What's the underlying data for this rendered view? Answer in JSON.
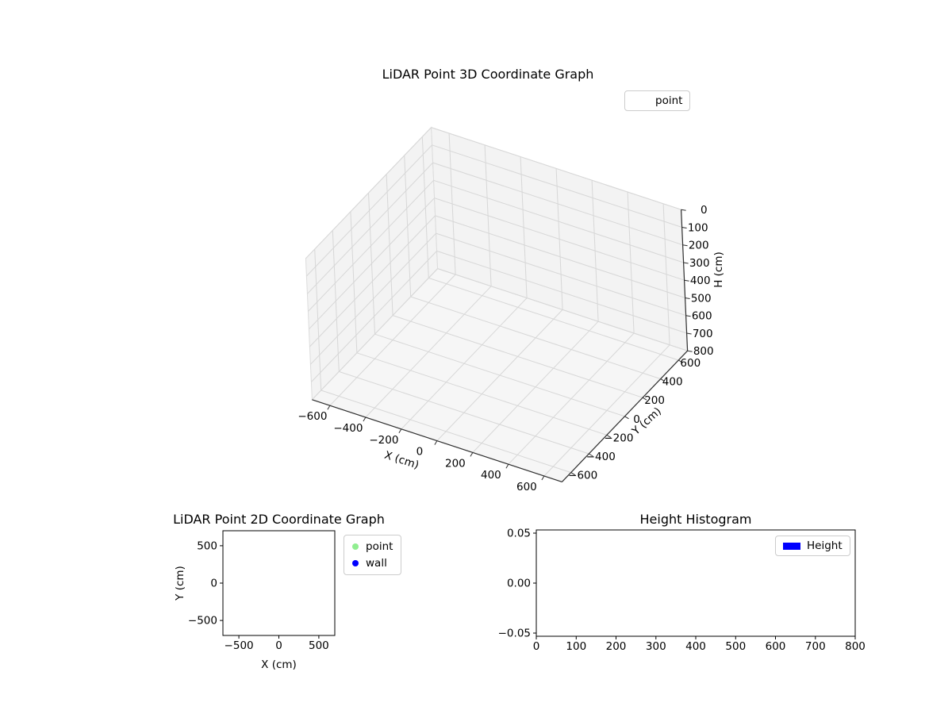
{
  "colors": {
    "background": "#ffffff",
    "pane": "#f3f3f3",
    "pane_floor": "#f6f6f6",
    "pane_edge": "#dcdcdc",
    "grid": "#d7d7d7",
    "axisline": "#2f2f2f",
    "text": "#000000",
    "legend_border": "#cccccc",
    "point_color": "#90ee90",
    "wall_color": "#0000ff",
    "height_color": "#0000ff"
  },
  "chart_data": [
    {
      "type": "scatter3d",
      "title": "LiDAR Point 3D Coordinate Graph",
      "xlabel": "X (cm)",
      "ylabel": "Y (cm)",
      "zlabel": "H (cm)",
      "xlim": [
        -700,
        700
      ],
      "ylim": [
        -700,
        700
      ],
      "zlim": [
        0,
        800
      ],
      "zaxis_inverted": true,
      "xticks": [
        -600,
        -400,
        -200,
        0,
        200,
        400,
        600
      ],
      "xtick_labels": [
        "−600",
        "−400",
        "−200",
        "0",
        "200",
        "400",
        "600"
      ],
      "yticks": [
        -600,
        -400,
        -200,
        0,
        200,
        400,
        600
      ],
      "ytick_labels": [
        "−600",
        "−400",
        "−200",
        "0",
        "200",
        "400",
        "600"
      ],
      "zticks": [
        0,
        100,
        200,
        300,
        400,
        500,
        600,
        700,
        800
      ],
      "ztick_labels": [
        "0",
        "100",
        "200",
        "300",
        "400",
        "500",
        "600",
        "700",
        "800"
      ],
      "legend": [
        {
          "label": "point"
        }
      ],
      "legend_position": "upper right, outside top",
      "series": [
        {
          "name": "point",
          "points": []
        }
      ],
      "grid": true
    },
    {
      "type": "scatter",
      "title": "LiDAR Point 2D Coordinate Graph",
      "xlabel": "X (cm)",
      "ylabel": "Y (cm)",
      "xlim": [
        -700,
        700
      ],
      "ylim": [
        -700,
        700
      ],
      "xticks": [
        -500,
        0,
        500
      ],
      "xtick_labels": [
        "−500",
        "0",
        "500"
      ],
      "yticks": [
        500,
        0,
        -500
      ],
      "ytick_labels": [
        "500",
        "0",
        "−500"
      ],
      "legend": [
        {
          "label": "point",
          "color": "#90ee90"
        },
        {
          "label": "wall",
          "color": "#0000ff"
        }
      ],
      "legend_position": "outside right",
      "series": [
        {
          "name": "point",
          "color": "#90ee90",
          "points": []
        },
        {
          "name": "wall",
          "color": "#0000ff",
          "points": []
        }
      ],
      "grid": false
    },
    {
      "type": "bar",
      "title": "Height Histogram",
      "xlabel": "",
      "ylabel": "",
      "xlim": [
        0,
        800
      ],
      "ylim": [
        -0.0532,
        0.0532
      ],
      "xticks": [
        0,
        100,
        200,
        300,
        400,
        500,
        600,
        700,
        800
      ],
      "xtick_labels": [
        "0",
        "100",
        "200",
        "300",
        "400",
        "500",
        "600",
        "700",
        "800"
      ],
      "yticks": [
        0.05,
        0,
        -0.05
      ],
      "ytick_labels": [
        "0.05",
        "0.00",
        "−0.05"
      ],
      "legend": [
        {
          "label": "Height",
          "color": "#0000ff"
        }
      ],
      "legend_position": "upper right, inside",
      "values": [],
      "grid": false
    }
  ]
}
